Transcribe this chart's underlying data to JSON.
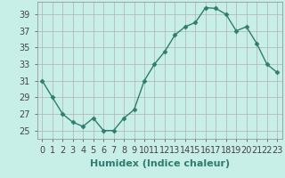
{
  "x": [
    0,
    1,
    2,
    3,
    4,
    5,
    6,
    7,
    8,
    9,
    10,
    11,
    12,
    13,
    14,
    15,
    16,
    17,
    18,
    19,
    20,
    21,
    22,
    23
  ],
  "y": [
    31,
    29,
    27,
    26,
    25.5,
    26.5,
    25,
    25,
    26.5,
    27.5,
    31,
    33,
    34.5,
    36.5,
    37.5,
    38,
    39.8,
    39.7,
    39,
    37,
    37.5,
    35.5,
    33,
    32
  ],
  "line_color": "#2e7d6e",
  "marker": "D",
  "marker_size": 2.5,
  "bg_color": "#c8eee8",
  "grid_color": "#b0b0b0",
  "xlabel": "Humidex (Indice chaleur)",
  "xlim": [
    -0.5,
    23.5
  ],
  "ylim": [
    24,
    40.5
  ],
  "yticks": [
    25,
    27,
    29,
    31,
    33,
    35,
    37,
    39
  ],
  "xtick_labels": [
    "0",
    "1",
    "2",
    "3",
    "4",
    "5",
    "6",
    "7",
    "8",
    "9",
    "10",
    "11",
    "12",
    "13",
    "14",
    "15",
    "16",
    "17",
    "18",
    "19",
    "20",
    "21",
    "22",
    "23"
  ],
  "xlabel_fontsize": 8,
  "tick_fontsize": 7,
  "line_width": 1.0
}
